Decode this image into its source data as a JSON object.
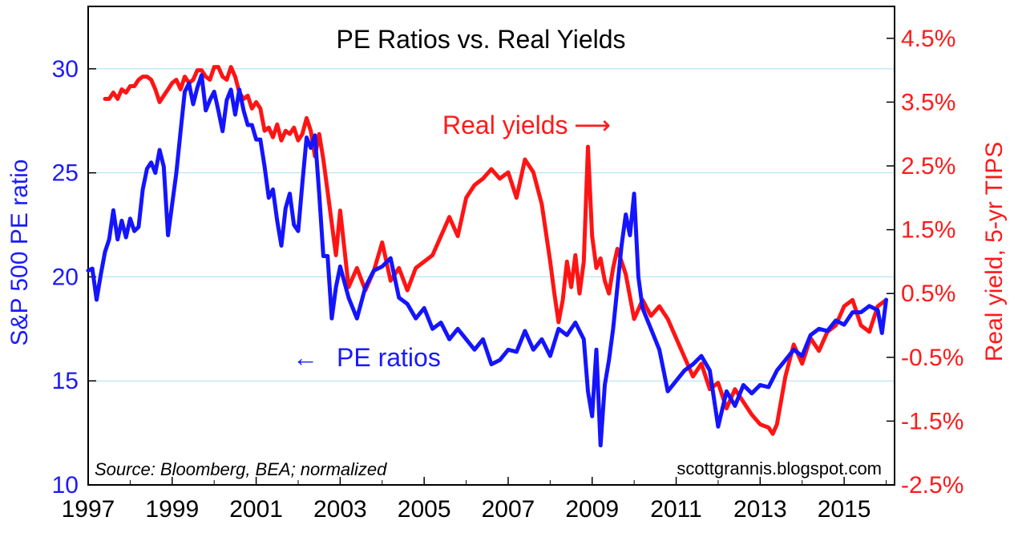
{
  "chart_data": {
    "type": "line",
    "title": "PE Ratios vs. Real Yields",
    "xlabel": "",
    "ylabel_left": "S&P 500 PE ratio",
    "ylabel_right": "Real yield, 5-yr TIPS",
    "x_ticks": [
      "1997",
      "1999",
      "2001",
      "2003",
      "2005",
      "2007",
      "2009",
      "2011",
      "2013",
      "2015"
    ],
    "x_tick_values": [
      1997,
      1999,
      2001,
      2003,
      2005,
      2007,
      2009,
      2011,
      2013,
      2015
    ],
    "xlim": [
      1997,
      2016.2
    ],
    "y_left_ticks": [
      "10",
      "15",
      "20",
      "25",
      "30"
    ],
    "y_left_tick_values": [
      10,
      15,
      20,
      25,
      30
    ],
    "ylim_left": [
      10,
      33
    ],
    "y_right_ticks": [
      "-2.5%",
      "-1.5%",
      "-0.5%",
      "0.5%",
      "1.5%",
      "2.5%",
      "3.5%",
      "4.5%"
    ],
    "y_right_tick_values": [
      -2.5,
      -1.5,
      -0.5,
      0.5,
      1.5,
      2.5,
      3.5,
      4.5
    ],
    "ylim_right": [
      -2.5,
      5.0
    ],
    "grid": true,
    "annotations": {
      "pe_label": "PE ratios",
      "pe_arrow": "←",
      "ry_label": "Real yields",
      "ry_arrow": "⟶",
      "source": "Source: Bloomberg, BEA; normalized",
      "credit": "scottgrannis.blogspot.com"
    },
    "series": [
      {
        "name": "PE ratios",
        "axis": "left",
        "color": "#1414ff",
        "x": [
          1997.0,
          1997.1,
          1997.2,
          1997.3,
          1997.4,
          1997.5,
          1997.6,
          1997.7,
          1997.8,
          1997.9,
          1998.0,
          1998.1,
          1998.2,
          1998.3,
          1998.4,
          1998.5,
          1998.6,
          1998.7,
          1998.8,
          1998.9,
          1999.0,
          1999.1,
          1999.2,
          1999.3,
          1999.4,
          1999.5,
          1999.6,
          1999.7,
          1999.8,
          1999.9,
          2000.0,
          2000.1,
          2000.2,
          2000.3,
          2000.4,
          2000.5,
          2000.6,
          2000.7,
          2000.8,
          2000.9,
          2001.0,
          2001.1,
          2001.2,
          2001.3,
          2001.4,
          2001.5,
          2001.6,
          2001.7,
          2001.8,
          2001.9,
          2002.0,
          2002.1,
          2002.2,
          2002.3,
          2002.4,
          2002.5,
          2002.6,
          2002.7,
          2002.8,
          2002.9,
          2003.0,
          2003.2,
          2003.4,
          2003.6,
          2003.8,
          2004.0,
          2004.2,
          2004.4,
          2004.6,
          2004.8,
          2005.0,
          2005.2,
          2005.4,
          2005.6,
          2005.8,
          2006.0,
          2006.2,
          2006.4,
          2006.6,
          2006.8,
          2007.0,
          2007.2,
          2007.4,
          2007.6,
          2007.8,
          2008.0,
          2008.2,
          2008.4,
          2008.6,
          2008.8,
          2008.9,
          2009.0,
          2009.1,
          2009.2,
          2009.3,
          2009.4,
          2009.5,
          2009.6,
          2009.7,
          2009.8,
          2009.9,
          2010.0,
          2010.1,
          2010.2,
          2010.4,
          2010.6,
          2010.8,
          2011.0,
          2011.2,
          2011.4,
          2011.6,
          2011.8,
          2012.0,
          2012.2,
          2012.4,
          2012.6,
          2012.8,
          2013.0,
          2013.2,
          2013.4,
          2013.6,
          2013.8,
          2014.0,
          2014.2,
          2014.4,
          2014.6,
          2014.8,
          2015.0,
          2015.2,
          2015.4,
          2015.6,
          2015.8,
          2015.9,
          2016.0
        ],
        "values": [
          20.3,
          20.4,
          18.9,
          20.1,
          21.2,
          21.8,
          23.2,
          21.8,
          22.7,
          21.9,
          22.8,
          22.2,
          22.4,
          24.2,
          25.2,
          25.5,
          25.0,
          26.1,
          25.3,
          22.0,
          23.5,
          25.0,
          27.0,
          28.9,
          29.3,
          28.3,
          29.1,
          29.7,
          28.0,
          28.5,
          28.9,
          28.0,
          27.0,
          28.5,
          29.0,
          27.8,
          29.0,
          28.0,
          27.3,
          27.3,
          26.6,
          26.6,
          25.3,
          23.8,
          24.2,
          22.7,
          21.5,
          23.3,
          24.0,
          22.5,
          22.2,
          24.5,
          26.7,
          26.2,
          26.8,
          24.0,
          21.0,
          21.0,
          18.0,
          19.5,
          20.5,
          19.0,
          18.0,
          19.5,
          20.3,
          20.5,
          20.9,
          19.0,
          18.7,
          18.0,
          18.5,
          17.5,
          17.8,
          17.0,
          17.5,
          17.0,
          16.5,
          17.0,
          15.8,
          16.0,
          16.5,
          16.4,
          17.4,
          16.5,
          17.0,
          16.2,
          17.5,
          17.2,
          17.8,
          17.0,
          14.5,
          13.3,
          16.5,
          11.9,
          14.8,
          16.0,
          17.5,
          19.5,
          21.5,
          23.0,
          22.0,
          24.0,
          20.0,
          18.5,
          17.5,
          16.5,
          14.5,
          15.0,
          15.5,
          15.8,
          16.2,
          15.5,
          12.8,
          14.5,
          13.8,
          14.8,
          14.4,
          14.8,
          14.7,
          15.5,
          16.0,
          16.5,
          16.2,
          17.2,
          17.5,
          17.4,
          17.9,
          17.7,
          18.3,
          18.3,
          18.6,
          18.4,
          17.3,
          18.9
        ]
      },
      {
        "name": "Real yields",
        "axis": "right",
        "color": "#ff1414",
        "x": [
          1997.4,
          1997.5,
          1997.6,
          1997.7,
          1997.8,
          1997.9,
          1998.0,
          1998.1,
          1998.2,
          1998.3,
          1998.4,
          1998.5,
          1998.6,
          1998.7,
          1998.8,
          1998.9,
          1999.0,
          1999.1,
          1999.2,
          1999.3,
          1999.4,
          1999.5,
          1999.6,
          1999.7,
          1999.8,
          1999.9,
          2000.0,
          2000.1,
          2000.2,
          2000.3,
          2000.4,
          2000.5,
          2000.6,
          2000.7,
          2000.8,
          2000.9,
          2001.0,
          2001.1,
          2001.2,
          2001.3,
          2001.4,
          2001.5,
          2001.6,
          2001.7,
          2001.8,
          2001.9,
          2002.0,
          2002.1,
          2002.2,
          2002.3,
          2002.4,
          2002.5,
          2002.6,
          2002.7,
          2002.8,
          2002.9,
          2003.0,
          2003.2,
          2003.4,
          2003.6,
          2003.8,
          2004.0,
          2004.2,
          2004.4,
          2004.6,
          2004.8,
          2005.0,
          2005.2,
          2005.4,
          2005.6,
          2005.8,
          2006.0,
          2006.2,
          2006.4,
          2006.6,
          2006.8,
          2007.0,
          2007.2,
          2007.4,
          2007.6,
          2007.8,
          2008.0,
          2008.1,
          2008.2,
          2008.3,
          2008.4,
          2008.5,
          2008.6,
          2008.7,
          2008.8,
          2008.9,
          2009.0,
          2009.1,
          2009.2,
          2009.3,
          2009.4,
          2009.5,
          2009.6,
          2009.8,
          2010.0,
          2010.2,
          2010.4,
          2010.6,
          2010.8,
          2011.0,
          2011.2,
          2011.4,
          2011.6,
          2011.8,
          2012.0,
          2012.2,
          2012.4,
          2012.6,
          2012.8,
          2013.0,
          2013.2,
          2013.3,
          2013.4,
          2013.6,
          2013.8,
          2014.0,
          2014.2,
          2014.4,
          2014.6,
          2014.8,
          2015.0,
          2015.2,
          2015.4,
          2015.6,
          2015.8,
          2016.0
        ],
        "values": [
          3.55,
          3.55,
          3.65,
          3.55,
          3.7,
          3.65,
          3.75,
          3.75,
          3.85,
          3.9,
          3.9,
          3.85,
          3.7,
          3.5,
          3.6,
          3.7,
          3.8,
          3.85,
          3.7,
          3.9,
          3.8,
          3.85,
          4.0,
          4.0,
          3.9,
          3.85,
          4.05,
          4.05,
          3.9,
          3.85,
          4.05,
          3.9,
          3.65,
          3.55,
          3.6,
          3.4,
          3.5,
          3.4,
          3.05,
          3.1,
          2.95,
          3.15,
          2.9,
          3.05,
          3.0,
          3.1,
          2.9,
          3.0,
          3.25,
          3.05,
          2.65,
          3.0,
          2.6,
          2.1,
          1.6,
          1.1,
          1.8,
          0.6,
          0.9,
          0.55,
          0.85,
          1.3,
          0.7,
          0.9,
          0.55,
          0.9,
          1.0,
          1.1,
          1.4,
          1.7,
          1.4,
          2.0,
          2.2,
          2.3,
          2.45,
          2.3,
          2.4,
          2.0,
          2.6,
          2.4,
          1.9,
          1.0,
          0.5,
          0.05,
          0.4,
          1.0,
          0.6,
          1.1,
          0.5,
          1.0,
          2.8,
          1.4,
          0.9,
          1.05,
          0.7,
          0.5,
          0.9,
          1.2,
          0.8,
          0.1,
          0.4,
          0.15,
          0.3,
          0.1,
          -0.2,
          -0.5,
          -0.8,
          -0.6,
          -1.0,
          -0.9,
          -1.3,
          -1.0,
          -1.2,
          -1.4,
          -1.55,
          -1.6,
          -1.7,
          -1.55,
          -0.8,
          -0.3,
          -0.6,
          -0.2,
          -0.4,
          -0.1,
          0.0,
          0.3,
          0.4,
          0.0,
          -0.1,
          0.3,
          0.4
        ]
      }
    ]
  }
}
